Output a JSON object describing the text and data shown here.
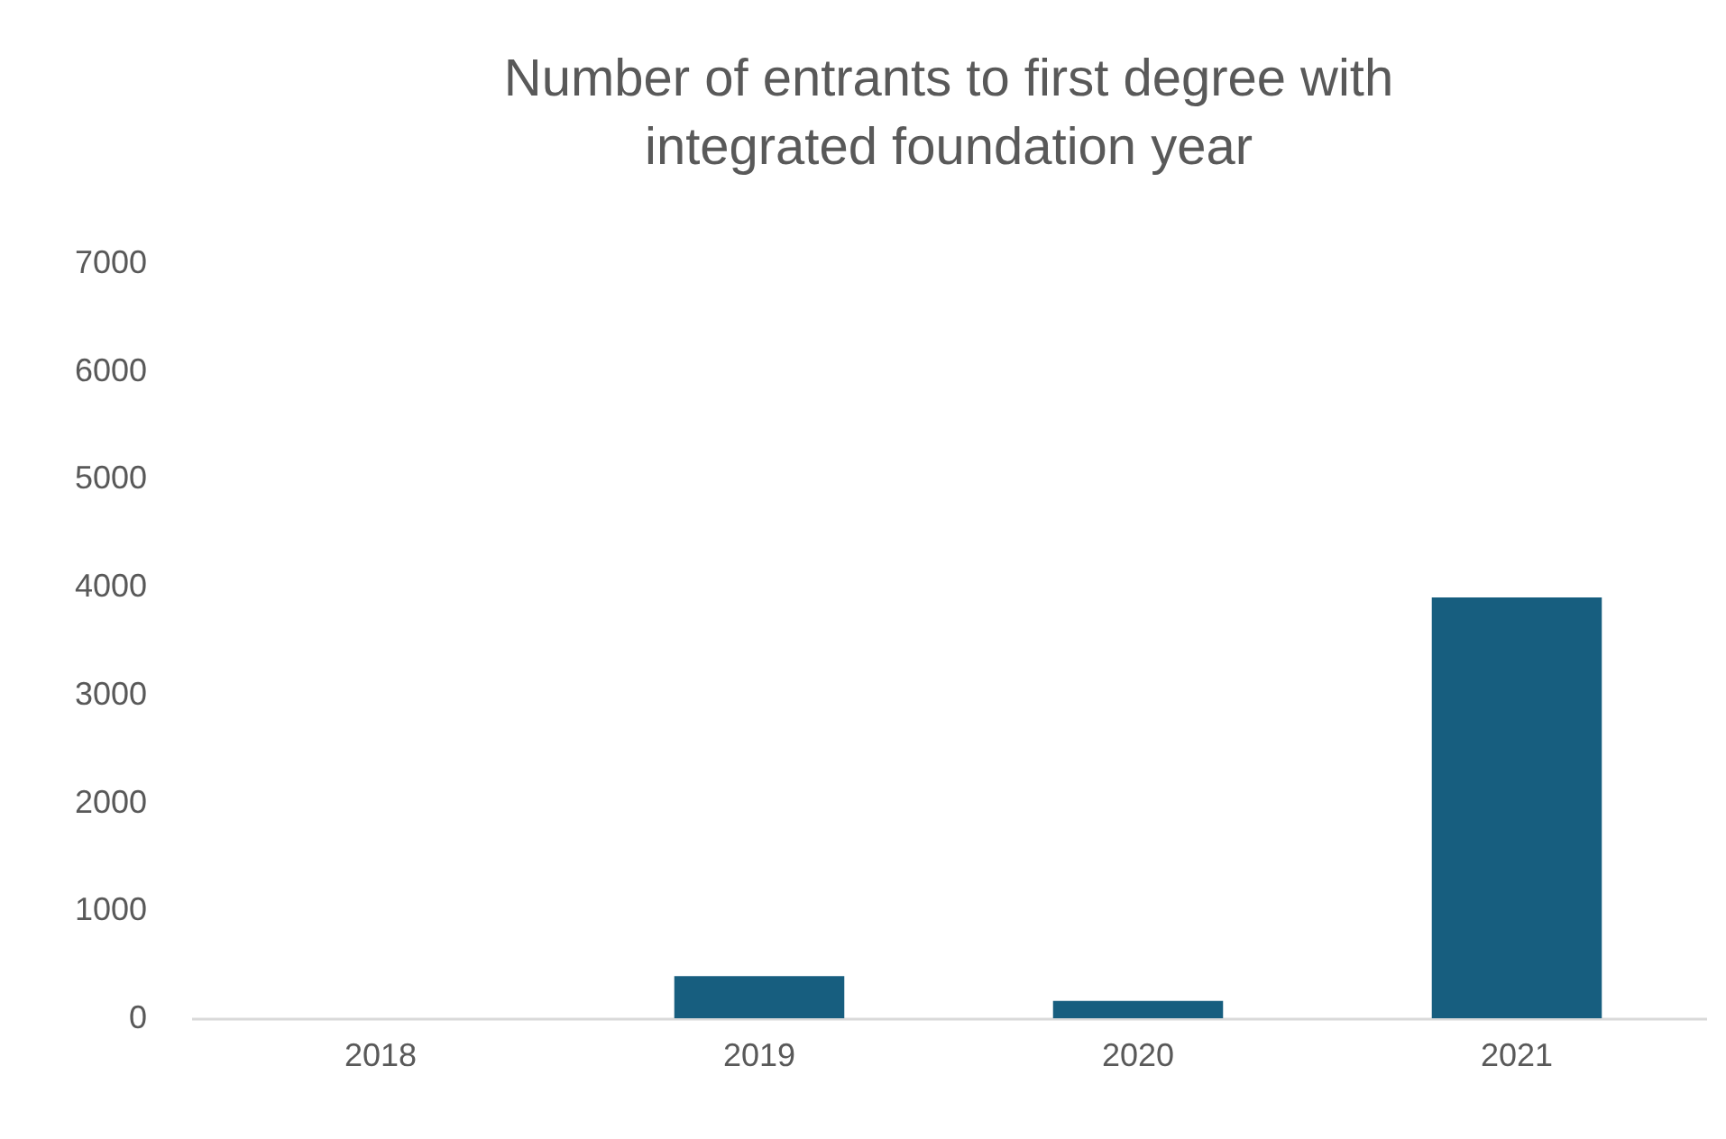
{
  "chart_data": {
    "type": "bar",
    "title": [
      "Number of entrants to first degree with",
      "integrated foundation year"
    ],
    "categories": [
      "2018",
      "2019",
      "2020",
      "2021"
    ],
    "values": [
      0,
      390,
      160,
      3900
    ],
    "color": "#175e7f",
    "ylim": [
      0,
      7000
    ],
    "yticks": [
      0,
      1000,
      2000,
      3000,
      4000,
      5000,
      6000,
      7000
    ],
    "grid": false
  }
}
